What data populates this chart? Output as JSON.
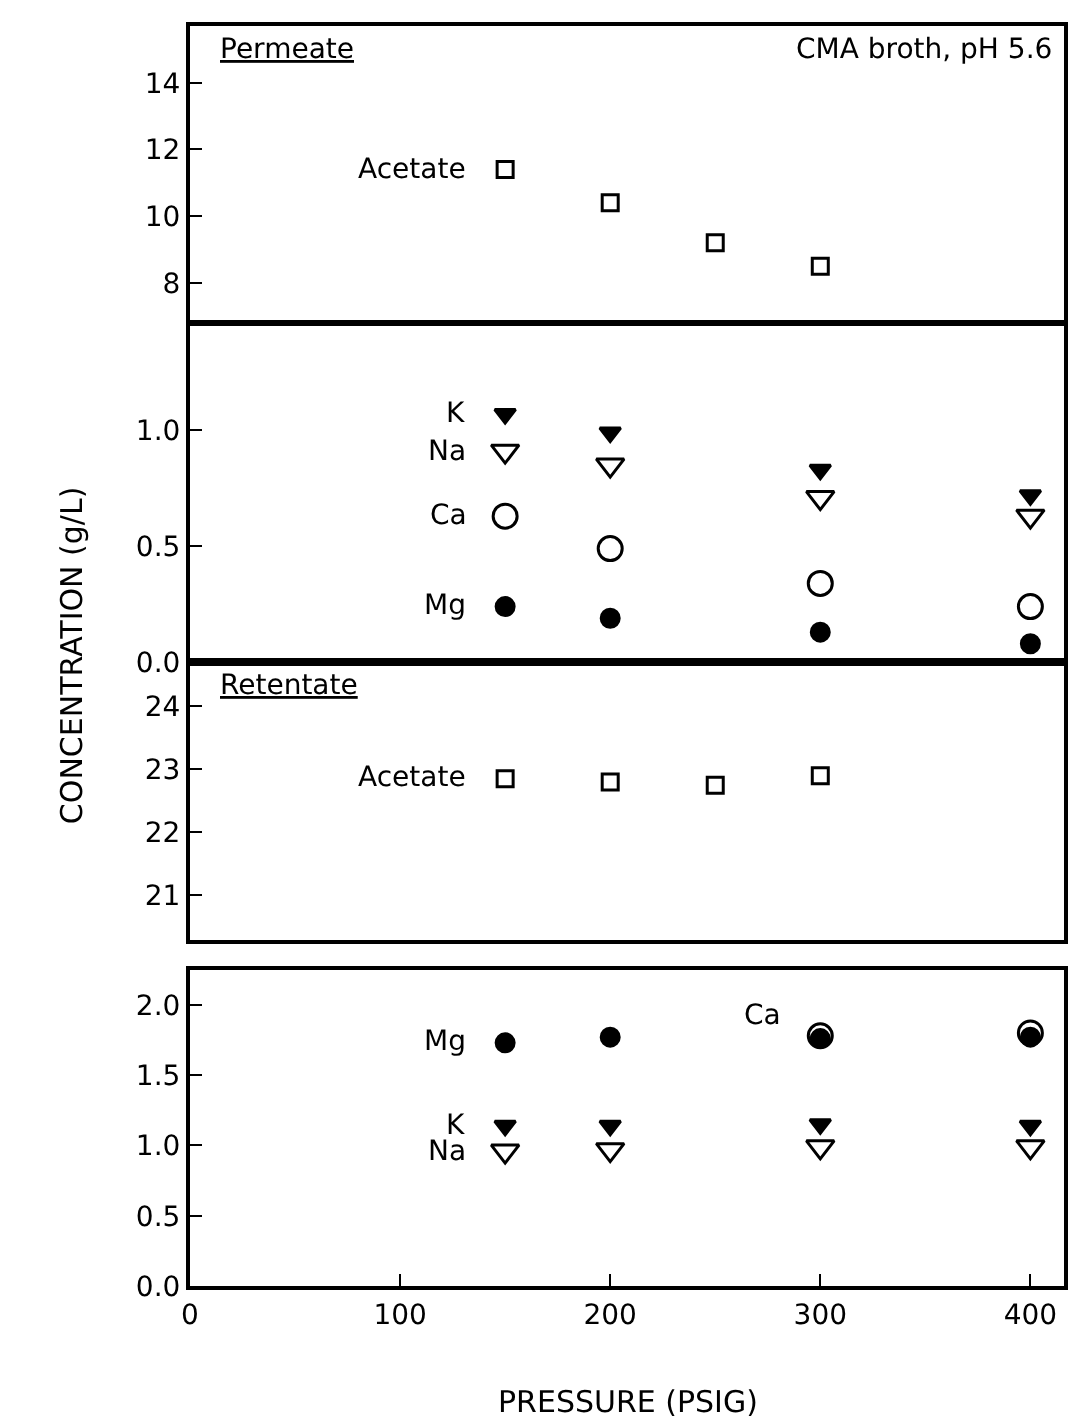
{
  "chart_data": [
    {
      "type": "scatter",
      "title": "Permeate",
      "subtitle": "CMA broth, pH 5.6",
      "ylabel": "CONCENTRATION (g/L)",
      "x": [
        150,
        200,
        250,
        300
      ],
      "xlim": [
        0,
        416
      ],
      "ylim": [
        6.9,
        15.7
      ],
      "yticks": [
        8,
        10,
        12,
        14
      ],
      "tick_labels": "y",
      "series": [
        {
          "name": "Acetate",
          "marker": "square",
          "color": "#ffffff",
          "values": [
            11.4,
            10.4,
            9.2,
            8.5
          ]
        }
      ]
    },
    {
      "type": "scatter",
      "x": [
        150,
        200,
        300,
        400
      ],
      "xlim": [
        0,
        416
      ],
      "ylim": [
        0,
        1.45
      ],
      "yticks": [
        {
          "value": 0,
          "label": "0.0"
        },
        0.5,
        {
          "value": 1,
          "label": "1.0"
        }
      ],
      "tick_labels": "y",
      "series": [
        {
          "name": "K",
          "marker": "triangle",
          "color": "#000000",
          "values": [
            1.07,
            0.99,
            0.83,
            0.72
          ]
        },
        {
          "name": "Na",
          "marker": "triangle",
          "color": "#ffffff",
          "values": [
            0.91,
            0.85,
            0.71,
            0.63
          ]
        },
        {
          "name": "Ca",
          "marker": "circle",
          "color": "#ffffff",
          "values": [
            0.63,
            0.49,
            0.34,
            0.24
          ]
        },
        {
          "name": "Mg",
          "marker": "circle",
          "color": "#000000",
          "values": [
            0.24,
            0.19,
            0.13,
            0.08
          ]
        }
      ]
    },
    {
      "type": "scatter",
      "title": "Retentate",
      "x": [
        150,
        200,
        250,
        300
      ],
      "xlim": [
        0,
        416
      ],
      "ylim": [
        20.3,
        24.7
      ],
      "yticks": [
        21,
        22,
        23,
        24
      ],
      "tick_labels": "y",
      "series": [
        {
          "name": "Acetate",
          "marker": "square",
          "color": "#ffffff",
          "values": [
            22.85,
            22.8,
            22.75,
            22.9
          ]
        }
      ]
    },
    {
      "type": "scatter",
      "xlabel": "PRESSURE (PSIG)",
      "x": [
        150,
        200,
        300,
        400
      ],
      "xlim": [
        0,
        416
      ],
      "xticks": [
        0,
        100,
        200,
        300,
        400
      ],
      "ylim": [
        0,
        2.25
      ],
      "yticks": [
        {
          "value": 0,
          "label": "0.0"
        },
        0.5,
        {
          "value": 1,
          "label": "1.0"
        },
        1.5,
        {
          "value": 2,
          "label": "2.0"
        }
      ],
      "series": [
        {
          "name": "Ca",
          "marker": "circle",
          "color": "#ffffff",
          "values": [
            null,
            null,
            1.78,
            1.8
          ]
        },
        {
          "name": "Mg",
          "marker": "circle",
          "color": "#000000",
          "values": [
            1.73,
            1.77,
            1.76,
            1.77
          ]
        },
        {
          "name": "K",
          "marker": "triangle",
          "color": "#000000",
          "values": [
            1.14,
            1.14,
            1.15,
            1.14
          ]
        },
        {
          "name": "Na",
          "marker": "triangle",
          "color": "#ffffff",
          "values": [
            0.96,
            0.97,
            0.99,
            0.99
          ]
        }
      ]
    }
  ]
}
